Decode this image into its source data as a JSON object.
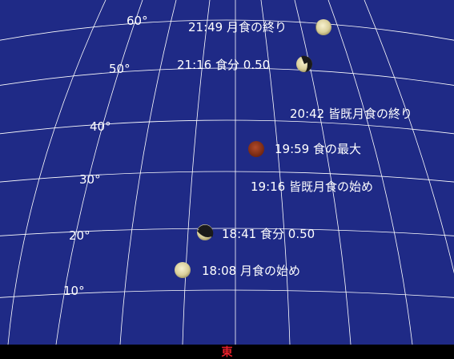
{
  "sky": {
    "background": "#1f2a86",
    "horizon_color": "#000000",
    "grid_color": "#ffffff",
    "altitude_labels": [
      "60°",
      "50°",
      "40°",
      "30°",
      "20°",
      "10°"
    ],
    "direction_label": "東",
    "direction_color": "#e8202a"
  },
  "events": [
    {
      "time": "21:49",
      "label": "月食の終り",
      "phase": "partial-bright"
    },
    {
      "time": "21:16",
      "label": "食分 0.50",
      "phase": "half-shadow"
    },
    {
      "time": "20:42",
      "label": "皆既月食の終り",
      "phase": "none"
    },
    {
      "time": "19:59",
      "label": "食の最大",
      "phase": "total"
    },
    {
      "time": "19:16",
      "label": "皆既月食の始め",
      "phase": "none"
    },
    {
      "time": "18:41",
      "label": "食分 0.50",
      "phase": "half-shadow"
    },
    {
      "time": "18:08",
      "label": "月食の始め",
      "phase": "full"
    }
  ]
}
